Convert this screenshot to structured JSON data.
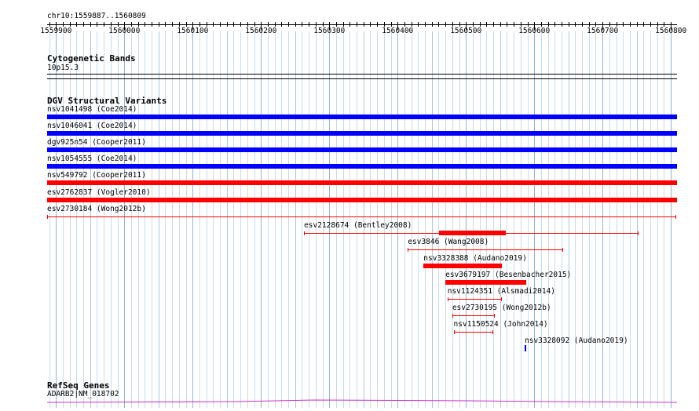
{
  "region_label": "chr10:1559887..1560809",
  "ruler": {
    "start": 1559887,
    "end": 1560809,
    "ticks": [
      {
        "value": 1559900,
        "label": "1559900"
      },
      {
        "value": 1560000,
        "label": "1560000"
      },
      {
        "value": 1560100,
        "label": "1560100"
      },
      {
        "value": 1560200,
        "label": "1560200"
      },
      {
        "value": 1560300,
        "label": "1560300"
      },
      {
        "value": 1560400,
        "label": "1560400"
      },
      {
        "value": 1560500,
        "label": "1560500"
      },
      {
        "value": 1560600,
        "label": "1560600"
      },
      {
        "value": 1560700,
        "label": "1560700"
      },
      {
        "value": 1560800,
        "label": "1560800"
      }
    ]
  },
  "cytobands": {
    "title": "Cytogenetic Bands",
    "band_label": "10p15.3"
  },
  "dgv": {
    "title": "DGV Structural Variants",
    "colors": {
      "loss": "#ff0000",
      "gain": "#0000ff"
    },
    "features": [
      {
        "label": "nsv1041498 (Coe2014)",
        "style": "thick",
        "color": "#0000ff",
        "start": 1559887,
        "end": 1560809
      },
      {
        "label": "nsv1046041 (Coe2014)",
        "style": "thick",
        "color": "#0000ff",
        "start": 1559887,
        "end": 1560809
      },
      {
        "label": "dgv925n54 (Cooper2011)",
        "style": "thick",
        "color": "#0000ff",
        "start": 1559887,
        "end": 1560809
      },
      {
        "label": "nsv1054555 (Coe2014)",
        "style": "thick",
        "color": "#0000ff",
        "start": 1559887,
        "end": 1560809
      },
      {
        "label": "nsv549792 (Cooper2011)",
        "style": "thick",
        "color": "#ff0000",
        "start": 1559887,
        "end": 1560809
      },
      {
        "label": "esv2762837 (Vogler2010)",
        "style": "thick",
        "color": "#ff0000",
        "start": 1559887,
        "end": 1560809
      },
      {
        "label": "esv2730184 (Wong2012b)",
        "style": "thin",
        "color": "#ff0000",
        "start": 1559887,
        "end": 1560808
      },
      {
        "label": "esv2128674 (Bentley2008)",
        "style": "thin",
        "color": "#ff0000",
        "start": 1560263,
        "end": 1560753,
        "thick_start": 1560461,
        "thick_end": 1560558
      },
      {
        "label": "esv3846 (Wang2008)",
        "style": "thin",
        "color": "#ff0000",
        "start": 1560415,
        "end": 1560642
      },
      {
        "label": "nsv3328388 (Audano2019)",
        "style": "thick",
        "color": "#ff0000",
        "start": 1560438,
        "end": 1560553
      },
      {
        "label": "esv3679197 (Besenbacher2015)",
        "style": "thick",
        "color": "#ff0000",
        "start": 1560470,
        "end": 1560588
      },
      {
        "label": "nsv1124351 (Alsmadi2014)",
        "style": "thin",
        "color": "#ff0000",
        "start": 1560473,
        "end": 1560553
      },
      {
        "label": "esv2730195 (Wong2012b)",
        "style": "thin",
        "color": "#ff0000",
        "start": 1560480,
        "end": 1560542
      },
      {
        "label": "nsv1150524 (John2014)",
        "style": "thin",
        "color": "#ff0000",
        "start": 1560482,
        "end": 1560540
      },
      {
        "label": "nsv3328092 (Audano2019)",
        "style": "tiny",
        "color": "#0000ff",
        "start": 1560586,
        "end": 1560588
      }
    ]
  },
  "refseq": {
    "title": "RefSeq Genes",
    "gene_label": "ADARB2|NM_018702",
    "color": "#cc33cc"
  }
}
